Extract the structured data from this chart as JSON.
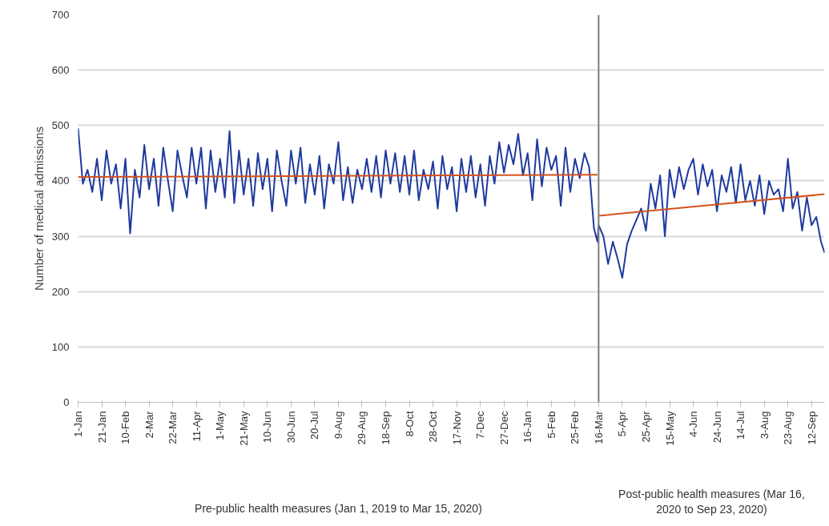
{
  "chart_data": {
    "type": "line",
    "ylabel": "Number of medical admissions",
    "xlim": [
      "2019-01-01",
      "2020-09-23"
    ],
    "ylim": [
      0,
      700
    ],
    "yticks": [
      0,
      100,
      200,
      300,
      400,
      500,
      600,
      700
    ],
    "xticks": [
      {
        "value": "2019-01-01",
        "label": "1-Jan"
      },
      {
        "value": "2019-01-21",
        "label": "21-Jan"
      },
      {
        "value": "2019-02-10",
        "label": "10-Feb"
      },
      {
        "value": "2019-03-02",
        "label": "2-Mar"
      },
      {
        "value": "2019-03-22",
        "label": "22-Mar"
      },
      {
        "value": "2019-04-11",
        "label": "11-Apr"
      },
      {
        "value": "2019-05-01",
        "label": "1-May"
      },
      {
        "value": "2019-05-21",
        "label": "21-May"
      },
      {
        "value": "2019-06-10",
        "label": "10-Jun"
      },
      {
        "value": "2019-06-30",
        "label": "30-Jun"
      },
      {
        "value": "2019-07-20",
        "label": "20-Jul"
      },
      {
        "value": "2019-08-09",
        "label": "9-Aug"
      },
      {
        "value": "2019-08-29",
        "label": "29-Aug"
      },
      {
        "value": "2019-09-18",
        "label": "18-Sep"
      },
      {
        "value": "2019-10-08",
        "label": "8-Oct"
      },
      {
        "value": "2019-10-28",
        "label": "28-Oct"
      },
      {
        "value": "2019-11-17",
        "label": "17-Nov"
      },
      {
        "value": "2019-12-07",
        "label": "7-Dec"
      },
      {
        "value": "2019-12-27",
        "label": "27-Dec"
      },
      {
        "value": "2020-01-16",
        "label": "16-Jan"
      },
      {
        "value": "2020-02-05",
        "label": "5-Feb"
      },
      {
        "value": "2020-02-25",
        "label": "25-Feb"
      },
      {
        "value": "2020-03-16",
        "label": "16-Mar"
      },
      {
        "value": "2020-04-05",
        "label": "5-Apr"
      },
      {
        "value": "2020-04-25",
        "label": "25-Apr"
      },
      {
        "value": "2020-05-15",
        "label": "15-May"
      },
      {
        "value": "2020-06-04",
        "label": "4-Jun"
      },
      {
        "value": "2020-06-24",
        "label": "24-Jun"
      },
      {
        "value": "2020-07-14",
        "label": "14-Jul"
      },
      {
        "value": "2020-08-03",
        "label": "3-Aug"
      },
      {
        "value": "2020-08-23",
        "label": "23-Aug"
      },
      {
        "value": "2020-09-12",
        "label": "12-Sep"
      }
    ],
    "grid": "y",
    "ref_lines": [
      {
        "axis": "x",
        "value": "2020-03-16",
        "color": "#7f7f7f"
      }
    ],
    "annotations": [
      "Pre-public health measures (Jan 1, 2019 to Mar 15, 2020)",
      "Post-public health measures (Mar 16, 2020 to Sep 23, 2020)"
    ],
    "series": [
      {
        "color": "#1f3a9e",
        "x": [
          "2019-01-01",
          "2019-01-05",
          "2019-01-09",
          "2019-01-13",
          "2019-01-17",
          "2019-01-21",
          "2019-01-25",
          "2019-01-29",
          "2019-02-02",
          "2019-02-06",
          "2019-02-10",
          "2019-02-14",
          "2019-02-18",
          "2019-02-22",
          "2019-02-26",
          "2019-03-02",
          "2019-03-06",
          "2019-03-10",
          "2019-03-14",
          "2019-03-18",
          "2019-03-22",
          "2019-03-26",
          "2019-03-30",
          "2019-04-03",
          "2019-04-07",
          "2019-04-11",
          "2019-04-15",
          "2019-04-19",
          "2019-04-23",
          "2019-04-27",
          "2019-05-01",
          "2019-05-05",
          "2019-05-09",
          "2019-05-13",
          "2019-05-17",
          "2019-05-21",
          "2019-05-25",
          "2019-05-29",
          "2019-06-02",
          "2019-06-06",
          "2019-06-10",
          "2019-06-14",
          "2019-06-18",
          "2019-06-22",
          "2019-06-26",
          "2019-06-30",
          "2019-07-04",
          "2019-07-08",
          "2019-07-12",
          "2019-07-16",
          "2019-07-20",
          "2019-07-24",
          "2019-07-28",
          "2019-08-01",
          "2019-08-05",
          "2019-08-09",
          "2019-08-13",
          "2019-08-17",
          "2019-08-21",
          "2019-08-25",
          "2019-08-29",
          "2019-09-02",
          "2019-09-06",
          "2019-09-10",
          "2019-09-14",
          "2019-09-18",
          "2019-09-22",
          "2019-09-26",
          "2019-09-30",
          "2019-10-04",
          "2019-10-08",
          "2019-10-12",
          "2019-10-16",
          "2019-10-20",
          "2019-10-24",
          "2019-10-28",
          "2019-11-01",
          "2019-11-05",
          "2019-11-09",
          "2019-11-13",
          "2019-11-17",
          "2019-11-21",
          "2019-11-25",
          "2019-11-29",
          "2019-12-03",
          "2019-12-07",
          "2019-12-11",
          "2019-12-15",
          "2019-12-19",
          "2019-12-23",
          "2019-12-27",
          "2019-12-31",
          "2020-01-04",
          "2020-01-08",
          "2020-01-12",
          "2020-01-16",
          "2020-01-20",
          "2020-01-24",
          "2020-01-28",
          "2020-02-01",
          "2020-02-05",
          "2020-02-09",
          "2020-02-13",
          "2020-02-17",
          "2020-02-21",
          "2020-02-25",
          "2020-02-29",
          "2020-03-04",
          "2020-03-08",
          "2020-03-12",
          "2020-03-15",
          "2020-03-16",
          "2020-03-20",
          "2020-03-24",
          "2020-03-28",
          "2020-04-01",
          "2020-04-05",
          "2020-04-09",
          "2020-04-13",
          "2020-04-17",
          "2020-04-21",
          "2020-04-25",
          "2020-04-29",
          "2020-05-03",
          "2020-05-07",
          "2020-05-11",
          "2020-05-15",
          "2020-05-19",
          "2020-05-23",
          "2020-05-27",
          "2020-05-31",
          "2020-06-04",
          "2020-06-08",
          "2020-06-12",
          "2020-06-16",
          "2020-06-20",
          "2020-06-24",
          "2020-06-28",
          "2020-07-02",
          "2020-07-06",
          "2020-07-10",
          "2020-07-14",
          "2020-07-18",
          "2020-07-22",
          "2020-07-26",
          "2020-07-30",
          "2020-08-03",
          "2020-08-07",
          "2020-08-11",
          "2020-08-15",
          "2020-08-19",
          "2020-08-23",
          "2020-08-27",
          "2020-08-31",
          "2020-09-04",
          "2020-09-08",
          "2020-09-12",
          "2020-09-16",
          "2020-09-20",
          "2020-09-23"
        ],
        "values": [
          495,
          395,
          420,
          380,
          440,
          365,
          455,
          395,
          430,
          350,
          440,
          305,
          420,
          370,
          465,
          385,
          440,
          355,
          460,
          400,
          345,
          455,
          410,
          370,
          460,
          395,
          460,
          350,
          455,
          380,
          440,
          370,
          490,
          360,
          455,
          375,
          440,
          355,
          450,
          385,
          440,
          345,
          455,
          400,
          355,
          455,
          395,
          460,
          360,
          430,
          375,
          445,
          350,
          430,
          395,
          470,
          365,
          425,
          360,
          420,
          385,
          440,
          380,
          445,
          370,
          455,
          395,
          450,
          380,
          445,
          375,
          455,
          365,
          420,
          385,
          435,
          350,
          445,
          385,
          425,
          345,
          440,
          380,
          445,
          370,
          430,
          355,
          445,
          395,
          470,
          415,
          465,
          430,
          485,
          410,
          450,
          365,
          475,
          390,
          460,
          420,
          445,
          355,
          460,
          380,
          440,
          405,
          450,
          425,
          315,
          290,
          320,
          300,
          250,
          290,
          260,
          225,
          285,
          310,
          330,
          350,
          310,
          395,
          350,
          410,
          300,
          420,
          370,
          425,
          385,
          420,
          440,
          375,
          430,
          390,
          420,
          345,
          410,
          380,
          425,
          360,
          430,
          365,
          400,
          355,
          410,
          340,
          400,
          375,
          385,
          345,
          440,
          350,
          380,
          310,
          370,
          320,
          335,
          290,
          270
        ]
      },
      {
        "color": "#d4521c",
        "x": [
          "2019-01-01",
          "2020-03-15"
        ],
        "values": [
          407,
          411
        ]
      },
      {
        "color": "#d4521c",
        "x": [
          "2020-03-16",
          "2020-09-23"
        ],
        "values": [
          337,
          376
        ]
      }
    ]
  }
}
